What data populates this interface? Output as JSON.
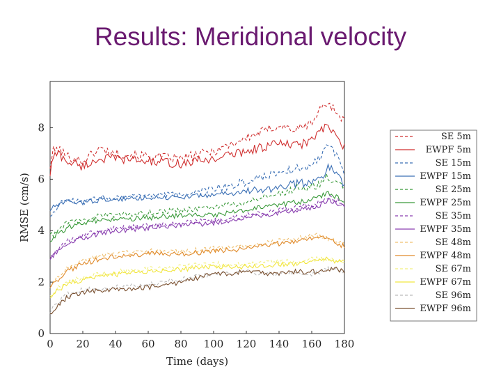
{
  "slide": {
    "title": "Results: Meridional velocity"
  },
  "chart_data": {
    "type": "line",
    "title": "",
    "xlabel": "Time (days)",
    "ylabel": "RMSE (cm/s)",
    "xlim": [
      0,
      180
    ],
    "ylim": [
      0,
      9.8
    ],
    "xticks": [
      0,
      20,
      40,
      60,
      80,
      100,
      120,
      140,
      160,
      180
    ],
    "yticks": [
      0,
      2,
      4,
      6,
      8
    ],
    "grid": false,
    "legend_position": "outside-right",
    "x_knots": [
      0,
      2,
      5,
      10,
      20,
      30,
      40,
      60,
      80,
      100,
      120,
      140,
      150,
      160,
      165,
      170,
      175,
      180
    ],
    "series": [
      {
        "name": "SE 5m",
        "style": "dashed",
        "color": "#d03030",
        "values": [
          6.5,
          7.1,
          7.2,
          6.9,
          6.7,
          7.2,
          7.0,
          6.9,
          6.8,
          7.1,
          7.6,
          8.1,
          7.9,
          8.2,
          8.7,
          9.0,
          8.6,
          8.3
        ]
      },
      {
        "name": "EWPF 5m",
        "style": "solid",
        "color": "#d03030",
        "values": [
          6.2,
          6.9,
          7.0,
          6.7,
          6.5,
          6.8,
          6.8,
          6.7,
          6.6,
          6.8,
          7.1,
          7.4,
          7.3,
          7.5,
          7.9,
          8.0,
          7.7,
          7.2
        ]
      },
      {
        "name": "SE 15m",
        "style": "dashed",
        "color": "#3a6fb5",
        "values": [
          4.6,
          4.7,
          5.0,
          5.2,
          5.1,
          5.3,
          5.3,
          5.4,
          5.4,
          5.6,
          5.9,
          6.3,
          6.4,
          6.5,
          6.9,
          7.4,
          7.0,
          6.2
        ]
      },
      {
        "name": "EWPF 15m",
        "style": "solid",
        "color": "#3a6fb5",
        "values": [
          4.8,
          4.9,
          5.0,
          5.1,
          5.1,
          5.2,
          5.2,
          5.3,
          5.3,
          5.4,
          5.5,
          5.7,
          5.8,
          5.9,
          6.0,
          6.5,
          6.2,
          5.8
        ]
      },
      {
        "name": "SE 25m",
        "style": "dashed",
        "color": "#3a9a3a",
        "values": [
          3.9,
          3.8,
          4.0,
          4.3,
          4.4,
          4.6,
          4.6,
          4.7,
          4.8,
          4.9,
          5.1,
          5.5,
          5.6,
          5.7,
          5.8,
          6.1,
          5.8,
          5.6
        ]
      },
      {
        "name": "EWPF 25m",
        "style": "solid",
        "color": "#3a9a3a",
        "values": [
          3.6,
          3.7,
          3.9,
          4.1,
          4.3,
          4.4,
          4.4,
          4.5,
          4.6,
          4.6,
          4.8,
          5.0,
          5.1,
          5.2,
          5.3,
          5.5,
          5.3,
          5.2
        ]
      },
      {
        "name": "SE 35m",
        "style": "dashed",
        "color": "#8a3fb0",
        "values": [
          2.9,
          3.0,
          3.3,
          3.6,
          3.8,
          4.0,
          4.1,
          4.2,
          4.3,
          4.4,
          4.6,
          4.8,
          4.9,
          5.0,
          5.1,
          5.3,
          5.2,
          5.0
        ]
      },
      {
        "name": "EWPF 35m",
        "style": "solid",
        "color": "#8a3fb0",
        "values": [
          2.9,
          3.0,
          3.2,
          3.5,
          3.7,
          3.9,
          4.0,
          4.1,
          4.2,
          4.3,
          4.5,
          4.7,
          4.8,
          4.9,
          5.0,
          5.2,
          5.1,
          4.9
        ]
      },
      {
        "name": "SE 48m",
        "style": "dashed",
        "color": "#f0c070",
        "values": [
          1.8,
          2.0,
          2.2,
          2.5,
          2.8,
          3.0,
          3.1,
          3.2,
          3.2,
          3.3,
          3.4,
          3.6,
          3.7,
          3.8,
          3.8,
          3.7,
          3.6,
          3.5
        ]
      },
      {
        "name": "EWPF 48m",
        "style": "solid",
        "color": "#e08a2a",
        "values": [
          1.8,
          1.9,
          2.1,
          2.4,
          2.7,
          2.9,
          3.0,
          3.1,
          3.1,
          3.2,
          3.3,
          3.5,
          3.6,
          3.7,
          3.8,
          3.7,
          3.5,
          3.4
        ]
      },
      {
        "name": "SE 67m",
        "style": "dashed",
        "color": "#f2f080",
        "values": [
          1.5,
          1.6,
          1.8,
          2.0,
          2.2,
          2.3,
          2.4,
          2.5,
          2.6,
          2.7,
          2.7,
          2.8,
          2.8,
          2.9,
          2.9,
          2.9,
          2.8,
          2.8
        ]
      },
      {
        "name": "EWPF 67m",
        "style": "solid",
        "color": "#f2e640",
        "values": [
          1.4,
          1.5,
          1.7,
          1.9,
          2.1,
          2.2,
          2.3,
          2.4,
          2.5,
          2.6,
          2.6,
          2.7,
          2.7,
          2.8,
          2.9,
          2.9,
          2.8,
          2.8
        ]
      },
      {
        "name": "SE 96m",
        "style": "dashed",
        "color": "#bbbbbb",
        "values": [
          0.8,
          1.0,
          1.2,
          1.5,
          1.7,
          1.7,
          1.8,
          1.9,
          2.1,
          2.3,
          2.4,
          2.3,
          2.4,
          2.3,
          2.4,
          2.5,
          2.5,
          2.4
        ]
      },
      {
        "name": "EWPF 96m",
        "style": "solid",
        "color": "#7a5030",
        "values": [
          0.8,
          0.9,
          1.1,
          1.4,
          1.6,
          1.7,
          1.7,
          1.8,
          2.0,
          2.3,
          2.4,
          2.3,
          2.4,
          2.4,
          2.4,
          2.5,
          2.5,
          2.4
        ]
      }
    ]
  }
}
